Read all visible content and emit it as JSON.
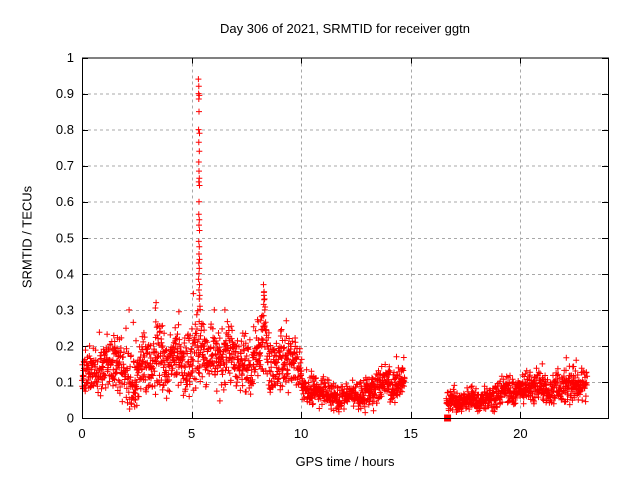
{
  "chart_data": {
    "type": "scatter",
    "title": "Day 306 of 2021, SRMTID for receiver ggtn",
    "xlabel": "GPS time / hours",
    "ylabel": "SRMTID / TECUs",
    "xlim": [
      0,
      24
    ],
    "ylim": [
      0,
      1
    ],
    "xticks": [
      {
        "v": 0,
        "label": "0"
      },
      {
        "v": 5,
        "label": "5"
      },
      {
        "v": 10,
        "label": "10"
      },
      {
        "v": 15,
        "label": "15"
      },
      {
        "v": 20,
        "label": "20"
      }
    ],
    "yticks": [
      {
        "v": 0,
        "label": "0"
      },
      {
        "v": 0.1,
        "label": "0.1"
      },
      {
        "v": 0.2,
        "label": "0.2"
      },
      {
        "v": 0.3,
        "label": "0.3"
      },
      {
        "v": 0.4,
        "label": "0.4"
      },
      {
        "v": 0.5,
        "label": "0.5"
      },
      {
        "v": 0.6,
        "label": "0.6"
      },
      {
        "v": 0.7,
        "label": "0.7"
      },
      {
        "v": 0.8,
        "label": "0.8"
      },
      {
        "v": 0.9,
        "label": "0.9"
      },
      {
        "v": 1,
        "label": "1"
      }
    ],
    "grid": true,
    "legend": false,
    "background": "#ffffff",
    "axis_color": "#000000",
    "grid_color": "#a8a8a8",
    "marker": {
      "shape": "plus",
      "color": "#ff0000",
      "size": 6
    },
    "special_marker": {
      "shape": "filled-square",
      "x": 16.68,
      "y": 0.0,
      "color": "#ff0000",
      "size": 7
    },
    "segments": [
      [
        0.0,
        14.72
      ],
      [
        16.62,
        23.05
      ]
    ],
    "gaps": [
      [
        14.72,
        16.62
      ]
    ],
    "sampling": {
      "points_per_hour": 105,
      "seed": 306
    },
    "band_envelope": [
      [
        0.0,
        0.12,
        0.05
      ],
      [
        0.7,
        0.14,
        0.06
      ],
      [
        1.3,
        0.15,
        0.07
      ],
      [
        2.0,
        0.14,
        0.09
      ],
      [
        2.5,
        0.11,
        0.08
      ],
      [
        3.0,
        0.15,
        0.07
      ],
      [
        3.4,
        0.17,
        0.09
      ],
      [
        4.0,
        0.15,
        0.07
      ],
      [
        4.6,
        0.17,
        0.08
      ],
      [
        5.3,
        0.18,
        0.1
      ],
      [
        5.9,
        0.16,
        0.08
      ],
      [
        6.5,
        0.18,
        0.09
      ],
      [
        7.1,
        0.15,
        0.07
      ],
      [
        7.7,
        0.16,
        0.08
      ],
      [
        8.3,
        0.2,
        0.1
      ],
      [
        8.8,
        0.16,
        0.07
      ],
      [
        9.3,
        0.17,
        0.08
      ],
      [
        9.8,
        0.14,
        0.06
      ],
      [
        10.3,
        0.09,
        0.05
      ],
      [
        10.8,
        0.07,
        0.04
      ],
      [
        11.5,
        0.06,
        0.035
      ],
      [
        12.2,
        0.065,
        0.03
      ],
      [
        12.9,
        0.07,
        0.035
      ],
      [
        13.5,
        0.085,
        0.04
      ],
      [
        14.1,
        0.1,
        0.045
      ],
      [
        14.72,
        0.1,
        0.04
      ],
      [
        16.62,
        0.05,
        0.03
      ],
      [
        17.3,
        0.045,
        0.028
      ],
      [
        18.0,
        0.05,
        0.03
      ],
      [
        18.7,
        0.06,
        0.035
      ],
      [
        19.4,
        0.075,
        0.04
      ],
      [
        20.1,
        0.08,
        0.04
      ],
      [
        20.8,
        0.085,
        0.045
      ],
      [
        21.5,
        0.08,
        0.04
      ],
      [
        22.2,
        0.09,
        0.045
      ],
      [
        22.7,
        0.1,
        0.05
      ],
      [
        23.05,
        0.09,
        0.05
      ]
    ],
    "spike_points": [
      [
        5.31,
        0.94
      ],
      [
        5.33,
        0.92
      ],
      [
        5.32,
        0.9
      ],
      [
        5.35,
        0.895
      ],
      [
        5.33,
        0.885
      ],
      [
        5.34,
        0.85
      ],
      [
        5.32,
        0.8
      ],
      [
        5.36,
        0.79
      ],
      [
        5.33,
        0.765
      ],
      [
        5.35,
        0.74
      ],
      [
        5.33,
        0.71
      ],
      [
        5.34,
        0.685
      ],
      [
        5.35,
        0.665
      ],
      [
        5.33,
        0.655
      ],
      [
        5.36,
        0.645
      ],
      [
        5.34,
        0.6
      ],
      [
        5.33,
        0.565
      ],
      [
        5.35,
        0.55
      ],
      [
        5.34,
        0.535
      ],
      [
        5.36,
        0.52
      ],
      [
        5.33,
        0.49
      ],
      [
        5.35,
        0.475
      ],
      [
        5.34,
        0.455
      ],
      [
        5.36,
        0.44
      ],
      [
        5.33,
        0.43
      ],
      [
        5.35,
        0.415
      ],
      [
        5.34,
        0.4
      ],
      [
        5.32,
        0.385
      ],
      [
        5.36,
        0.37
      ],
      [
        5.34,
        0.355
      ],
      [
        5.37,
        0.34
      ],
      [
        5.35,
        0.33
      ],
      [
        5.38,
        0.31
      ],
      [
        8.28,
        0.37
      ],
      [
        8.31,
        0.35
      ],
      [
        8.3,
        0.34
      ],
      [
        8.33,
        0.33
      ],
      [
        8.29,
        0.315
      ],
      [
        8.34,
        0.3
      ],
      [
        3.38,
        0.32
      ],
      [
        3.35,
        0.305
      ],
      [
        2.15,
        0.3
      ],
      [
        6.52,
        0.3
      ],
      [
        4.42,
        0.295
      ],
      [
        9.32,
        0.27
      ],
      [
        14.35,
        0.17
      ],
      [
        21.0,
        0.15
      ],
      [
        22.55,
        0.16
      ]
    ],
    "low_outliers": [
      [
        2.44,
        0.05
      ],
      [
        2.5,
        0.035
      ],
      [
        2.55,
        0.06
      ],
      [
        3.86,
        0.055
      ],
      [
        12.92,
        0.015
      ],
      [
        13.3,
        0.02
      ]
    ]
  }
}
